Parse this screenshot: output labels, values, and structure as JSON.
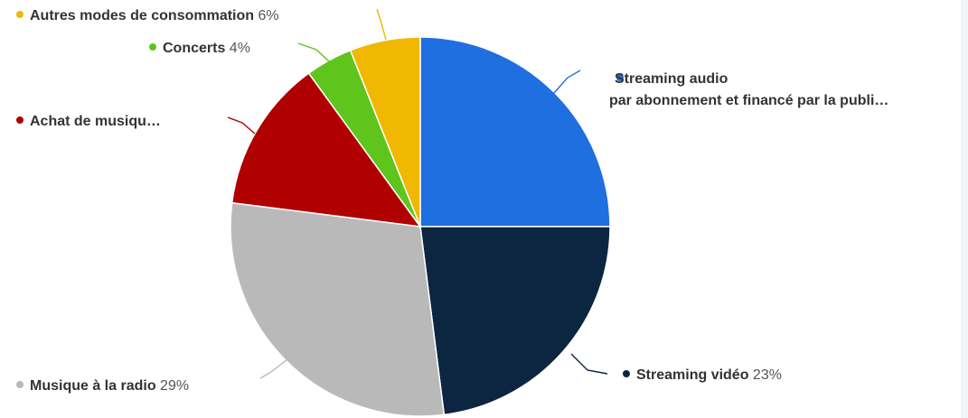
{
  "chart_data": {
    "type": "pie",
    "title": "",
    "slices": [
      {
        "name": "Streaming audio",
        "name_line2": "par abonnement et financé par la publi…",
        "value": 25,
        "value_label": "",
        "color": "#1f6fe0"
      },
      {
        "name": "Streaming vidéo",
        "name_line2": "",
        "value": 23,
        "value_label": "23%",
        "color": "#0c2540"
      },
      {
        "name": "Musique à la radio",
        "name_line2": "",
        "value": 29,
        "value_label": "29%",
        "color": "#b9b9b9"
      },
      {
        "name": "Achat de musiqu…",
        "name_line2": "",
        "value": 13,
        "value_label": "",
        "color": "#b00000"
      },
      {
        "name": "Concerts",
        "name_line2": "",
        "value": 4,
        "value_label": "4%",
        "color": "#5fc51c"
      },
      {
        "name": "Autres modes de consommation",
        "name_line2": "",
        "value": 6,
        "value_label": "6%",
        "color": "#f0b800"
      }
    ],
    "legend": "none"
  }
}
